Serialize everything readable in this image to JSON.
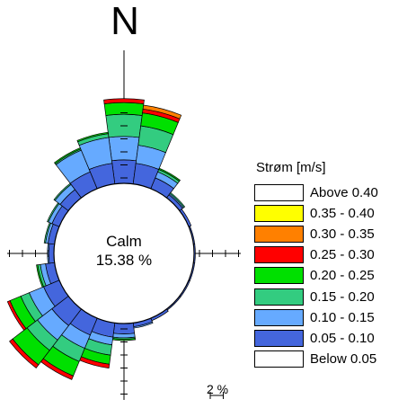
{
  "north_label": "N",
  "calm": {
    "label": "Calm",
    "value": "15.38 %"
  },
  "scale_label": "2 %",
  "legend": {
    "title": "Strøm [m/s]",
    "items": [
      {
        "label": "Above 0.40",
        "color": "#ffffff"
      },
      {
        "label": "0.35 - 0.40",
        "color": "#ffff00"
      },
      {
        "label": "0.30 - 0.35",
        "color": "#ff8000"
      },
      {
        "label": "0.25 - 0.30",
        "color": "#ff0000"
      },
      {
        "label": "0.20 - 0.25",
        "color": "#00e000"
      },
      {
        "label": "0.15 - 0.20",
        "color": "#33cc80"
      },
      {
        "label": "0.10 - 0.15",
        "color": "#66aaff"
      },
      {
        "label": "0.05 - 0.10",
        "color": "#4466dd"
      },
      {
        "label": "Below 0.05",
        "color": "#ffffff"
      }
    ]
  },
  "chart_data": {
    "type": "wind_rose",
    "calm_percent": 15.38,
    "sector_width_deg": 15,
    "series_order_inner_to_outer": [
      "0.05 - 0.10",
      "0.10 - 0.15",
      "0.15 - 0.20",
      "0.20 - 0.25",
      "0.25 - 0.30",
      "0.30 - 0.35"
    ],
    "sectors": [
      {
        "dir_deg": 0,
        "values": [
          1.8,
          1.8,
          1.7,
          0.9,
          0.3,
          0.0
        ]
      },
      {
        "dir_deg": 15,
        "values": [
          1.6,
          1.4,
          1.5,
          1.0,
          0.3,
          0.3
        ]
      },
      {
        "dir_deg": 30,
        "values": [
          0.9,
          0.5,
          0.2,
          0.1,
          0.0,
          0.0
        ]
      },
      {
        "dir_deg": 45,
        "values": [
          0.3,
          0.1,
          0.1,
          0.0,
          0.0,
          0.0
        ]
      },
      {
        "dir_deg": 60,
        "values": [
          0.2,
          0.0,
          0.0,
          0.0,
          0.0,
          0.0
        ]
      },
      {
        "dir_deg": 75,
        "values": [
          0.1,
          0.0,
          0.0,
          0.0,
          0.0,
          0.0
        ]
      },
      {
        "dir_deg": 90,
        "values": [
          0.1,
          0.0,
          0.0,
          0.0,
          0.0,
          0.0
        ]
      },
      {
        "dir_deg": 105,
        "values": [
          0.1,
          0.0,
          0.0,
          0.0,
          0.0,
          0.0
        ]
      },
      {
        "dir_deg": 120,
        "values": [
          0.1,
          0.0,
          0.0,
          0.0,
          0.0,
          0.0
        ]
      },
      {
        "dir_deg": 135,
        "values": [
          0.1,
          0.0,
          0.0,
          0.0,
          0.0,
          0.0
        ]
      },
      {
        "dir_deg": 150,
        "values": [
          0.2,
          0.0,
          0.0,
          0.0,
          0.0,
          0.0
        ]
      },
      {
        "dir_deg": 165,
        "values": [
          0.3,
          0.1,
          0.0,
          0.0,
          0.0,
          0.0
        ]
      },
      {
        "dir_deg": 180,
        "values": [
          0.8,
          0.3,
          0.1,
          0.1,
          0.0,
          0.0
        ]
      },
      {
        "dir_deg": 195,
        "values": [
          1.1,
          0.6,
          0.8,
          0.7,
          0.3,
          0.0
        ]
      },
      {
        "dir_deg": 210,
        "values": [
          1.4,
          1.1,
          1.1,
          1.2,
          0.3,
          0.0
        ]
      },
      {
        "dir_deg": 225,
        "values": [
          1.6,
          1.4,
          1.0,
          1.4,
          0.3,
          0.0
        ]
      },
      {
        "dir_deg": 240,
        "values": [
          1.3,
          1.2,
          0.7,
          0.9,
          0.2,
          0.0
        ]
      },
      {
        "dir_deg": 255,
        "values": [
          0.7,
          0.4,
          0.2,
          0.1,
          0.0,
          0.0
        ]
      },
      {
        "dir_deg": 270,
        "values": [
          0.4,
          0.1,
          0.0,
          0.0,
          0.0,
          0.0
        ]
      },
      {
        "dir_deg": 285,
        "values": [
          0.5,
          0.2,
          0.1,
          0.0,
          0.0,
          0.0
        ]
      },
      {
        "dir_deg": 300,
        "values": [
          0.6,
          0.3,
          0.1,
          0.0,
          0.0,
          0.0
        ]
      },
      {
        "dir_deg": 315,
        "values": [
          0.8,
          0.5,
          0.1,
          0.0,
          0.0,
          0.0
        ]
      },
      {
        "dir_deg": 330,
        "values": [
          1.4,
          1.8,
          0.1,
          0.1,
          0.0,
          0.0
        ]
      },
      {
        "dir_deg": 345,
        "values": [
          1.6,
          2.0,
          0.3,
          0.1,
          0.0,
          0.0
        ]
      }
    ]
  }
}
